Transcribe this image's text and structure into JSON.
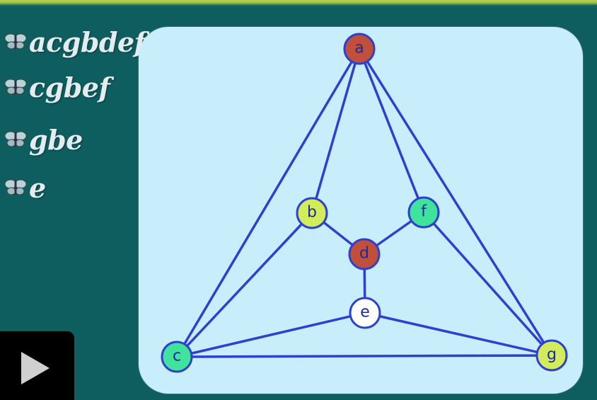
{
  "bullets": [
    {
      "text": "acgbdef",
      "icon": "butterfly-icon"
    },
    {
      "text": "cgbef",
      "icon": "butterfly-icon"
    },
    {
      "text": "gbe",
      "icon": "butterfly-icon"
    },
    {
      "text": "e",
      "icon": "butterfly-icon"
    }
  ],
  "graph": {
    "nodes": [
      {
        "id": "a",
        "label": "a",
        "color": "#c0503b"
      },
      {
        "id": "b",
        "label": "b",
        "color": "#d3ed5a"
      },
      {
        "id": "f",
        "label": "f",
        "color": "#3fe39c"
      },
      {
        "id": "d",
        "label": "d",
        "color": "#c0503b"
      },
      {
        "id": "e",
        "label": "e",
        "color": "#ffffff"
      },
      {
        "id": "c",
        "label": "c",
        "color": "#3fe39c"
      },
      {
        "id": "g",
        "label": "g",
        "color": "#d3ed5a"
      }
    ],
    "edges": [
      [
        "a",
        "b"
      ],
      [
        "a",
        "f"
      ],
      [
        "a",
        "c"
      ],
      [
        "a",
        "g"
      ],
      [
        "b",
        "d"
      ],
      [
        "f",
        "d"
      ],
      [
        "d",
        "e"
      ],
      [
        "b",
        "c"
      ],
      [
        "f",
        "g"
      ],
      [
        "e",
        "c"
      ],
      [
        "e",
        "g"
      ],
      [
        "c",
        "g"
      ]
    ],
    "edge_color": "#2f3fcf",
    "panel_color": "#c8eefc"
  },
  "player": {
    "icon": "play-icon"
  }
}
